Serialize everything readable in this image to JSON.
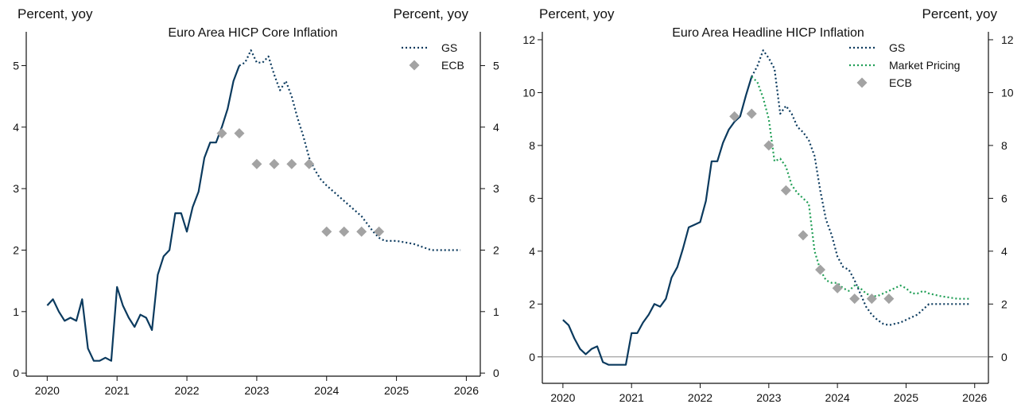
{
  "colors": {
    "actual": "#0b3a5e",
    "gs": "#0b3a5e",
    "market": "#1f9e55",
    "ecb": "#a3a3a3",
    "axis": "#111111",
    "zero_line": "#8c8c8c"
  },
  "chart_data": [
    {
      "type": "line",
      "title": "Euro Area HICP Core Inflation",
      "ylabel_left": "Percent, yoy",
      "ylabel_right": "Percent, yoy",
      "xlim": [
        2019.7,
        2026.2
      ],
      "ylim": [
        -0.05,
        5.55
      ],
      "xticks": [
        2020,
        2021,
        2022,
        2023,
        2024,
        2025,
        2026
      ],
      "xtick_labels": [
        "2020",
        "2021",
        "2022",
        "2023",
        "2024",
        "2025",
        "2026"
      ],
      "yticks": [
        0,
        1,
        2,
        3,
        4,
        5
      ],
      "ytick_labels": [
        "0",
        "1",
        "2",
        "3",
        "4",
        "5"
      ],
      "legend_position": "top-right",
      "series": [
        {
          "style": "solid",
          "color_key": "actual",
          "x": [
            2020.0,
            2020.083,
            2020.167,
            2020.25,
            2020.333,
            2020.417,
            2020.5,
            2020.583,
            2020.667,
            2020.75,
            2020.833,
            2020.917,
            2021.0,
            2021.083,
            2021.167,
            2021.25,
            2021.333,
            2021.417,
            2021.5,
            2021.583,
            2021.667,
            2021.75,
            2021.833,
            2021.917,
            2022.0,
            2022.083,
            2022.167,
            2022.25,
            2022.333,
            2022.417,
            2022.5,
            2022.583,
            2022.667,
            2022.75
          ],
          "y": [
            1.1,
            1.2,
            1.0,
            0.85,
            0.9,
            0.85,
            1.2,
            0.4,
            0.2,
            0.2,
            0.25,
            0.2,
            1.4,
            1.1,
            0.9,
            0.75,
            0.95,
            0.9,
            0.7,
            1.6,
            1.9,
            2.0,
            2.6,
            2.6,
            2.3,
            2.7,
            2.95,
            3.5,
            3.75,
            3.75,
            4.0,
            4.3,
            4.75,
            5.0
          ]
        },
        {
          "name": "GS",
          "style": "dotted",
          "color_key": "gs",
          "x": [
            2022.75,
            2022.833,
            2022.917,
            2023.0,
            2023.083,
            2023.167,
            2023.25,
            2023.333,
            2023.417,
            2023.5,
            2023.583,
            2023.667,
            2023.75,
            2023.833,
            2023.917,
            2024.0,
            2024.25,
            2024.5,
            2024.667,
            2024.75,
            2024.833,
            2025.0,
            2025.25,
            2025.5,
            2025.75,
            2025.917
          ],
          "y": [
            5.0,
            5.05,
            5.25,
            5.05,
            5.05,
            5.15,
            4.85,
            4.6,
            4.75,
            4.5,
            4.15,
            3.85,
            3.5,
            3.3,
            3.15,
            3.05,
            2.8,
            2.55,
            2.3,
            2.2,
            2.15,
            2.15,
            2.1,
            2.0,
            2.0,
            2.0
          ]
        },
        {
          "name": "ECB",
          "style": "markers",
          "color_key": "ecb",
          "x": [
            2022.5,
            2022.75,
            2023.0,
            2023.25,
            2023.5,
            2023.75,
            2024.0,
            2024.25,
            2024.5,
            2024.75
          ],
          "y": [
            3.9,
            3.9,
            3.4,
            3.4,
            3.4,
            3.4,
            2.3,
            2.3,
            2.3,
            2.3
          ]
        }
      ]
    },
    {
      "type": "line",
      "title": "Euro Area Headline HICP Inflation",
      "ylabel_left": "Percent, yoy",
      "ylabel_right": "Percent, yoy",
      "xlim": [
        2019.7,
        2026.2
      ],
      "ylim": [
        -1.0,
        12.3
      ],
      "xticks": [
        2020,
        2021,
        2022,
        2023,
        2024,
        2025,
        2026
      ],
      "xtick_labels": [
        "2020",
        "2021",
        "2022",
        "2023",
        "2024",
        "2025",
        "2026"
      ],
      "yticks": [
        0,
        2,
        4,
        6,
        8,
        10,
        12
      ],
      "ytick_labels": [
        "0",
        "2",
        "4",
        "6",
        "8",
        "10",
        "12"
      ],
      "zero_line": true,
      "legend_position": "top-right",
      "series": [
        {
          "style": "solid",
          "color_key": "actual",
          "x": [
            2020.0,
            2020.083,
            2020.167,
            2020.25,
            2020.333,
            2020.417,
            2020.5,
            2020.583,
            2020.667,
            2020.75,
            2020.833,
            2020.917,
            2021.0,
            2021.083,
            2021.167,
            2021.25,
            2021.333,
            2021.417,
            2021.5,
            2021.583,
            2021.667,
            2021.75,
            2021.833,
            2021.917,
            2022.0,
            2022.083,
            2022.167,
            2022.25,
            2022.333,
            2022.417,
            2022.5,
            2022.583,
            2022.667,
            2022.75
          ],
          "y": [
            1.4,
            1.2,
            0.7,
            0.3,
            0.1,
            0.3,
            0.4,
            -0.2,
            -0.3,
            -0.3,
            -0.3,
            -0.3,
            0.9,
            0.9,
            1.3,
            1.6,
            2.0,
            1.9,
            2.2,
            3.0,
            3.4,
            4.1,
            4.9,
            5.0,
            5.1,
            5.9,
            7.4,
            7.4,
            8.1,
            8.6,
            8.9,
            9.1,
            9.9,
            10.6
          ]
        },
        {
          "name": "GS",
          "style": "dotted",
          "color_key": "gs",
          "x": [
            2022.75,
            2022.833,
            2022.917,
            2023.0,
            2023.083,
            2023.167,
            2023.25,
            2023.333,
            2023.417,
            2023.5,
            2023.583,
            2023.667,
            2023.75,
            2023.833,
            2023.917,
            2024.0,
            2024.083,
            2024.167,
            2024.25,
            2024.333,
            2024.417,
            2024.5,
            2024.583,
            2024.667,
            2024.75,
            2024.833,
            2024.917,
            2025.0,
            2025.083,
            2025.167,
            2025.25,
            2025.333,
            2025.5,
            2025.75,
            2025.917
          ],
          "y": [
            10.6,
            11.0,
            11.6,
            11.3,
            10.9,
            9.2,
            9.5,
            9.2,
            8.7,
            8.5,
            8.2,
            7.6,
            6.3,
            5.2,
            4.6,
            3.8,
            3.4,
            3.3,
            2.9,
            2.4,
            1.9,
            1.6,
            1.4,
            1.25,
            1.2,
            1.25,
            1.3,
            1.4,
            1.5,
            1.6,
            1.8,
            2.0,
            2.0,
            2.0,
            2.0
          ]
        },
        {
          "name": "Market Pricing",
          "style": "dotted",
          "color_key": "market",
          "x": [
            2022.75,
            2022.833,
            2022.917,
            2023.0,
            2023.083,
            2023.167,
            2023.25,
            2023.333,
            2023.417,
            2023.5,
            2023.583,
            2023.667,
            2023.75,
            2023.833,
            2023.917,
            2024.0,
            2024.083,
            2024.167,
            2024.25,
            2024.333,
            2024.417,
            2024.5,
            2024.583,
            2024.667,
            2024.75,
            2024.833,
            2024.917,
            2025.0,
            2025.083,
            2025.167,
            2025.25,
            2025.333,
            2025.5,
            2025.75,
            2025.917
          ],
          "y": [
            10.6,
            10.4,
            9.8,
            9.0,
            7.4,
            7.5,
            7.2,
            6.5,
            6.2,
            6.0,
            5.8,
            4.0,
            3.3,
            2.9,
            2.8,
            2.8,
            2.6,
            2.5,
            2.7,
            2.6,
            2.4,
            2.3,
            2.3,
            2.4,
            2.5,
            2.6,
            2.7,
            2.6,
            2.4,
            2.4,
            2.5,
            2.4,
            2.3,
            2.2,
            2.2
          ]
        },
        {
          "name": "ECB",
          "style": "markers",
          "color_key": "ecb",
          "x": [
            2022.5,
            2022.75,
            2023.0,
            2023.25,
            2023.5,
            2023.75,
            2024.0,
            2024.25,
            2024.5,
            2024.75
          ],
          "y": [
            9.1,
            9.2,
            8.0,
            6.3,
            4.6,
            3.3,
            2.6,
            2.2,
            2.2,
            2.2
          ]
        }
      ]
    }
  ]
}
